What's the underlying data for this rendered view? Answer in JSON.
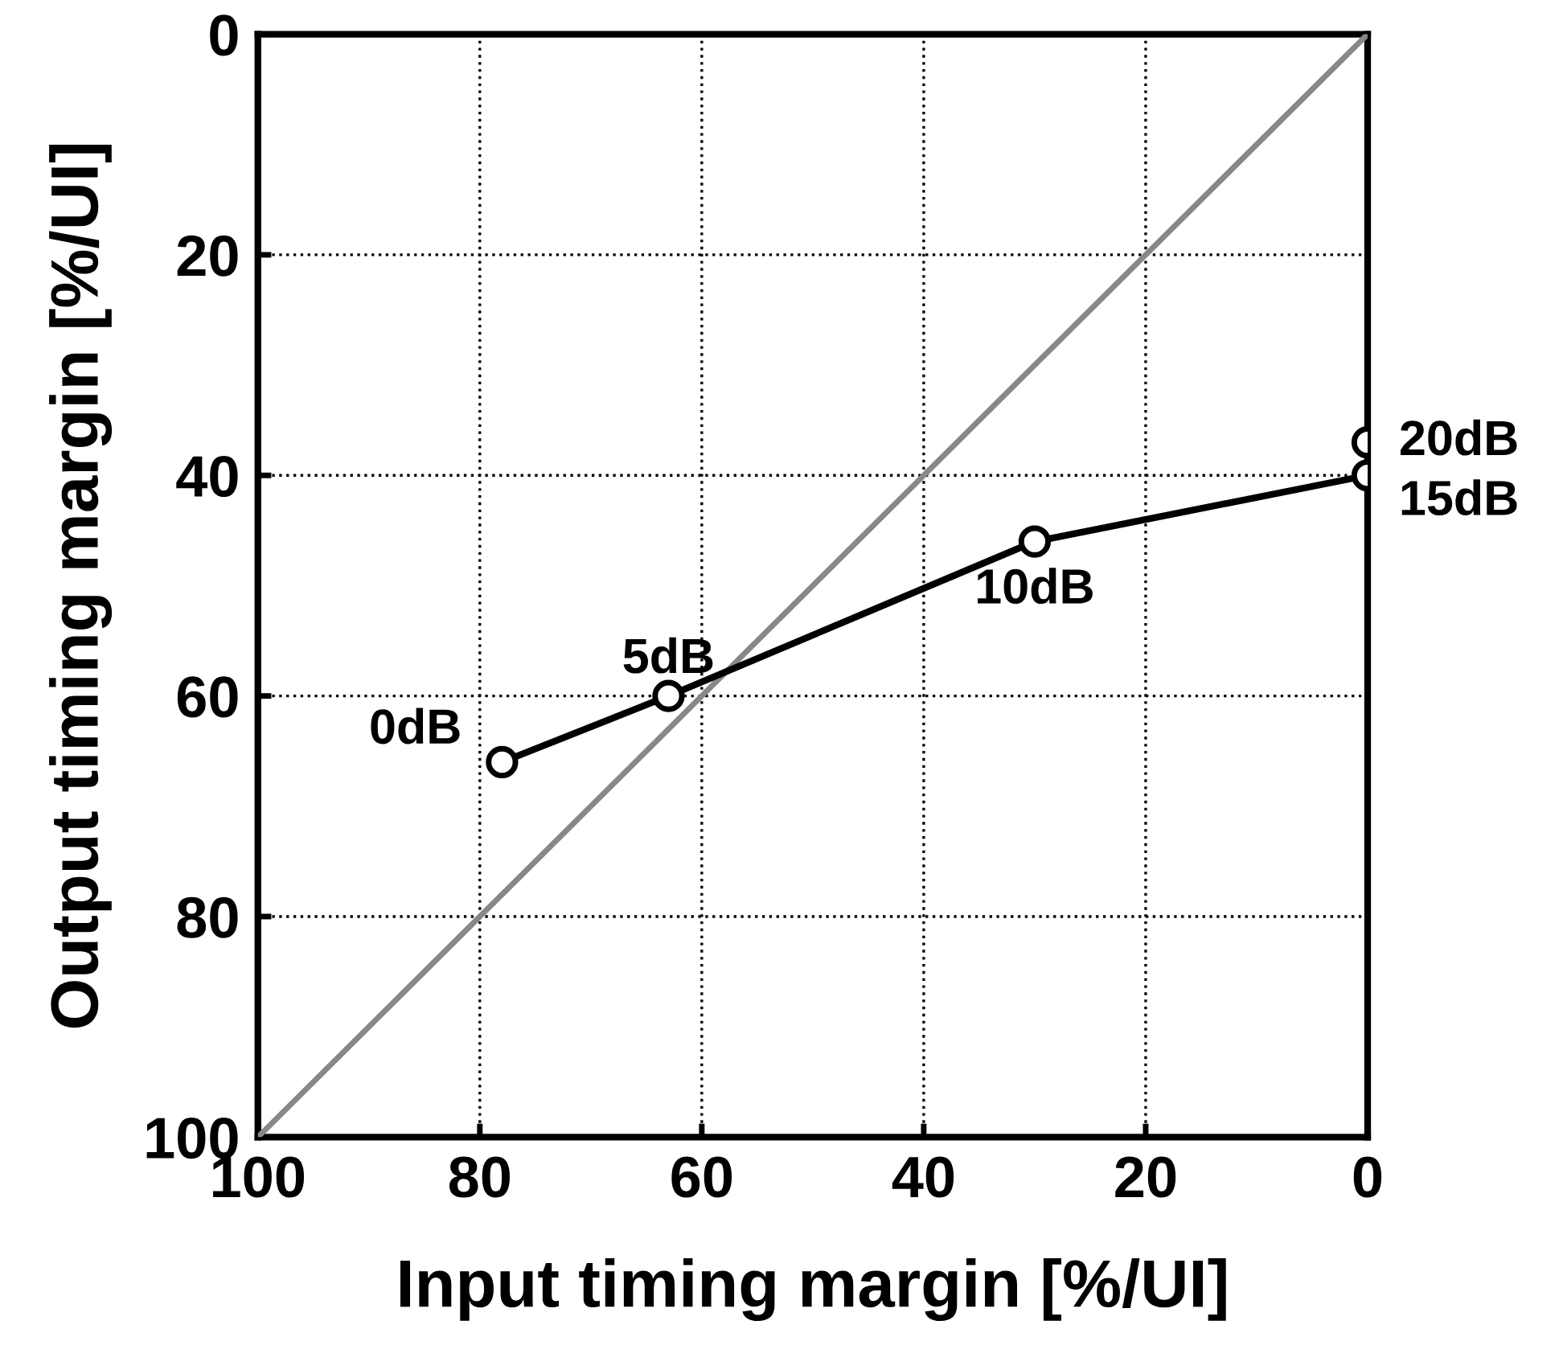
{
  "chart_data": {
    "type": "line",
    "xlabel": "Input timing margin [%/UI]",
    "ylabel": "Output timing margin [%/UI]",
    "xlim": [
      100,
      0
    ],
    "ylim": [
      100,
      0
    ],
    "xticks": [
      100,
      80,
      60,
      40,
      20,
      0
    ],
    "yticks": [
      100,
      80,
      60,
      40,
      20,
      0
    ],
    "grid": true,
    "legend": false,
    "series": [
      {
        "color": "#888888",
        "x": [
          100,
          0
        ],
        "values": [
          100,
          0
        ],
        "marker": "none"
      },
      {
        "color": "#000000",
        "x": [
          78,
          63,
          30,
          0
        ],
        "values": [
          66,
          60,
          46,
          40
        ],
        "marker": "circle"
      },
      {
        "type": "scatter",
        "color": "#000000",
        "x": [
          0
        ],
        "values": [
          37
        ],
        "marker": "circle"
      }
    ],
    "annotations": [
      {
        "text": "0dB",
        "x": 78,
        "y": 66
      },
      {
        "text": "5dB",
        "x": 63,
        "y": 60
      },
      {
        "text": "10dB",
        "x": 30,
        "y": 46
      },
      {
        "text": "15dB",
        "x": 0,
        "y": 40
      },
      {
        "text": "20dB",
        "x": 0,
        "y": 37
      }
    ]
  }
}
